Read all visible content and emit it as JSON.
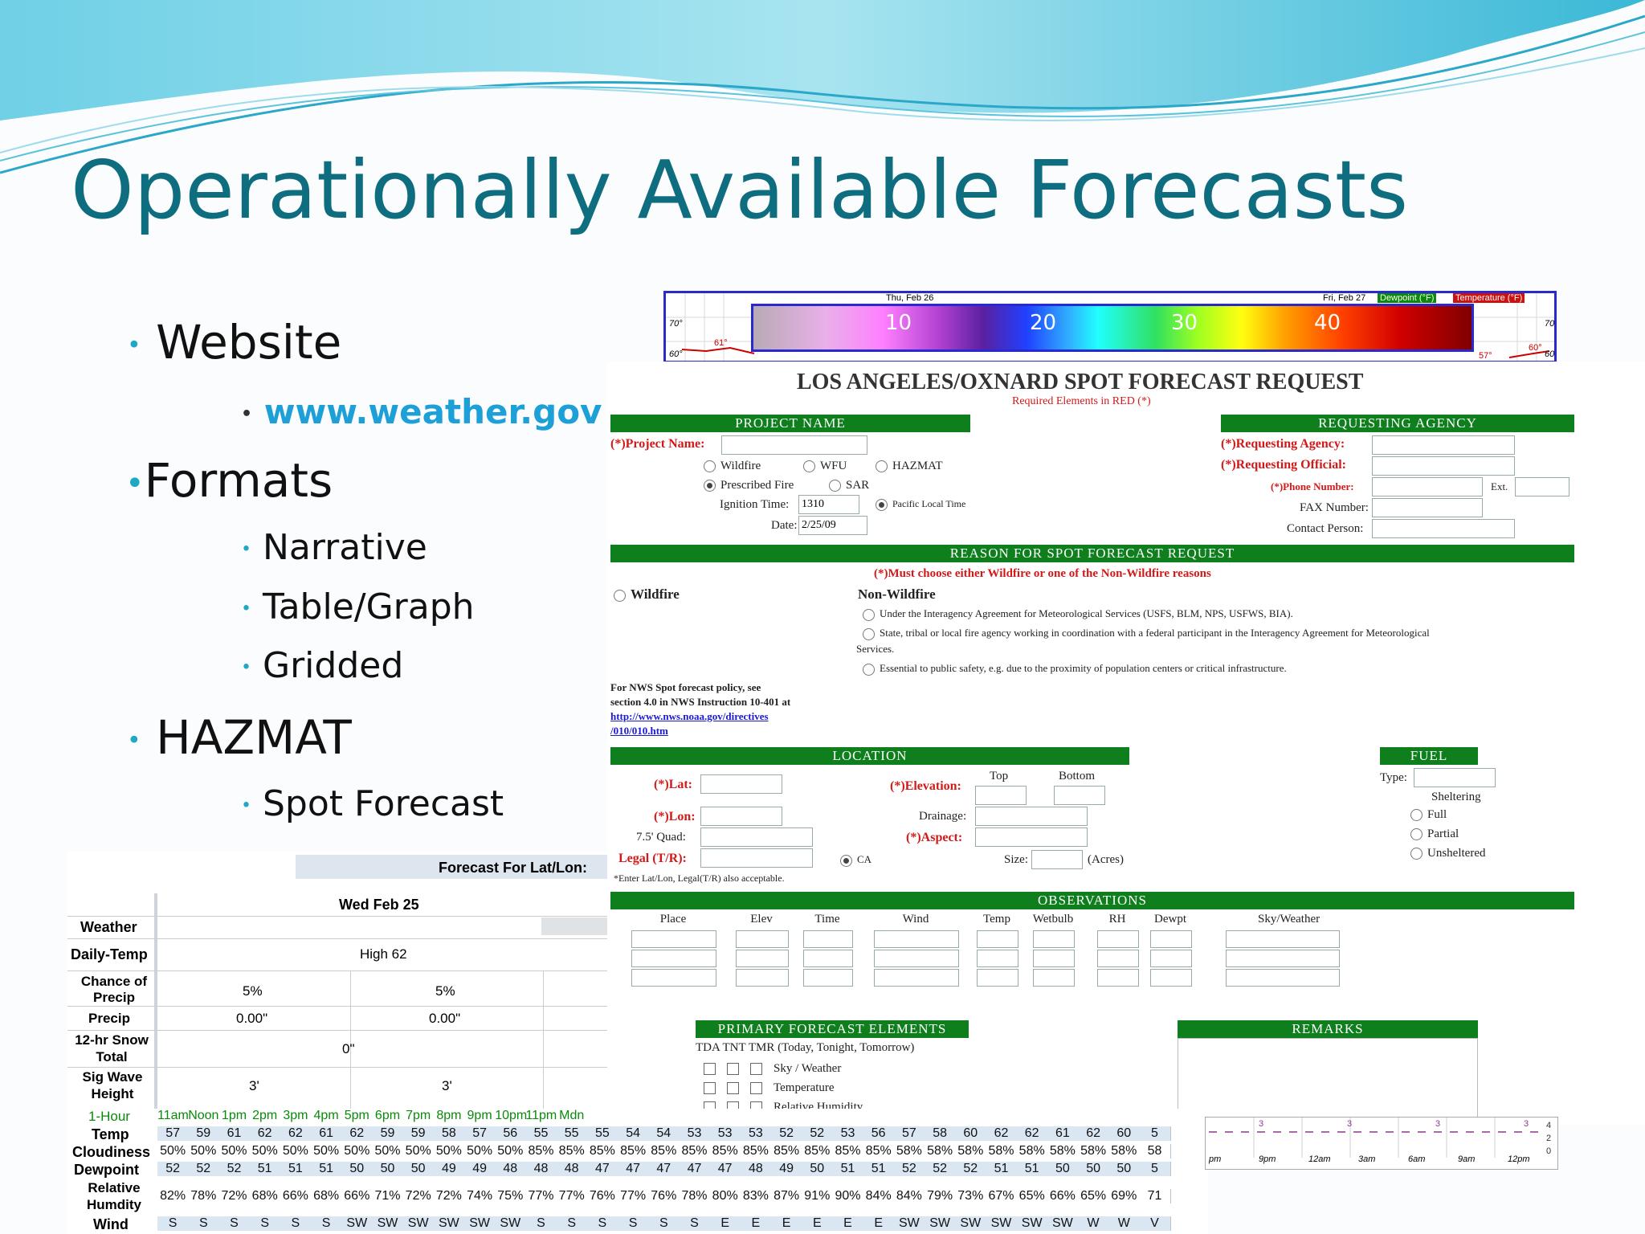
{
  "slide": {
    "title": "Operationally Available Forecasts",
    "bullets": {
      "website": "Website",
      "website_url": "www.weather.gov",
      "formats": "Formats",
      "narrative": "Narrative",
      "table_graph": "Table/Graph",
      "gridded": "Gridded",
      "hazmat": "HAZMAT",
      "spot_forecast": "Spot Forecast"
    },
    "bullet_char": "•"
  },
  "colorbar": {
    "ticks": [
      "10",
      "20",
      "30",
      "40"
    ],
    "header_left": "Thu, Feb 26",
    "header_right": "Fri, Feb 27",
    "legend_dewpoint": "Dewpoint (°F)",
    "legend_temperature": "Temperature (°F)",
    "left_axis_top": "70°",
    "left_axis_bottom": "60°",
    "right_axis_top": "70°",
    "right_axis_bottom": "60°",
    "point_label_left": "61°",
    "point_label_right": "57°",
    "point_label_right2": "60°"
  },
  "spot_form": {
    "title": "LOS ANGELES/OXNARD SPOT FORECAST REQUEST",
    "subtitle": "Required Elements in RED (*)",
    "project_name_bar": "PROJECT NAME",
    "requesting_agency_bar": "REQUESTING AGENCY",
    "project_name_label": "(*)Project Name:",
    "type_options": [
      "Wildfire",
      "WFU",
      "HAZMAT",
      "Prescribed Fire",
      "SAR"
    ],
    "ignition_time_label": "Ignition Time:",
    "ignition_time_value": "1310",
    "pacific_local_time": "Pacific Local Time",
    "date_label": "Date:",
    "date_value": "2/25/09",
    "requesting_agency_label": "(*)Requesting Agency:",
    "requesting_official_label": "(*)Requesting Official:",
    "phone_number_label": "(*)Phone Number:",
    "ext_label": "Ext.",
    "fax_number_label": "FAX Number:",
    "contact_person_label": "Contact Person:",
    "reason_bar": "REASON FOR SPOT FORECAST REQUEST",
    "reason_note": "(*)Must choose either Wildfire or one of the Non-Wildfire reasons",
    "wildfire_option": "Wildfire",
    "non_wildfire_heading": "Non-Wildfire",
    "non_wildfire_1": "Under the Interagency Agreement for Meteorological Services (USFS, BLM, NPS, USFWS, BIA).",
    "non_wildfire_2": "State, tribal or local fire agency working in coordination with a federal participant in the Interagency Agreement for Meteorological",
    "non_wildfire_2b": "Services.",
    "non_wildfire_3": "Essential to public safety, e.g. due to the proximity of population centers or critical infrastructure.",
    "policy_text_1": "For NWS Spot forecast policy, see",
    "policy_text_2": "section 4.0 in NWS Instruction 10-401 at",
    "policy_link_1": "http://www.nws.noaa.gov/directives",
    "policy_link_2": "/010/010.htm",
    "location_bar": "LOCATION",
    "fuel_bar": "FUEL",
    "lat_label": "(*)Lat:",
    "lon_label": "(*)Lon:",
    "quad_label": "7.5' Quad:",
    "legal_label": "Legal (T/R):",
    "ca_label": "CA",
    "enter_note": "*Enter Lat/Lon, Legal(T/R) also acceptable.",
    "elevation_label": "(*)Elevation:",
    "top_label": "Top",
    "bottom_label": "Bottom",
    "drainage_label": "Drainage:",
    "aspect_label": "(*)Aspect:",
    "size_label": "Size:",
    "acres_label": "(Acres)",
    "type_label": "Type:",
    "sheltering_label": "Sheltering",
    "sheltering_options": [
      "Full",
      "Partial",
      "Unsheltered"
    ],
    "observations_bar": "OBSERVATIONS",
    "obs_columns": [
      "Place",
      "Elev",
      "Time",
      "Wind",
      "Temp",
      "Wetbulb",
      "RH",
      "Dewpt",
      "Sky/Weather"
    ],
    "primary_bar": "PRIMARY FORECAST ELEMENTS",
    "remarks_bar": "REMARKS",
    "tda_header": "TDA TNT TMR (Today, Tonight, Tomorrow)",
    "elements": [
      "Sky / Weather",
      "Temperature",
      "Relative Humidity"
    ]
  },
  "point_table": {
    "header_title": "Forecast For Lat/Lon:",
    "day_header": "Wed Feb 25",
    "rows": {
      "weather": "Weather",
      "daily_temp": "Daily-Temp",
      "daily_temp_value": "High 62",
      "chance_precip": "Chance of Precip",
      "chance_values": [
        "5%",
        "5%"
      ],
      "precip": "Precip",
      "precip_values": [
        "0.00\"",
        "0.00\""
      ],
      "snow": "12-hr Snow Total",
      "snow_value": "0\"",
      "sig_wave": "Sig Wave Height",
      "wave_values": [
        "3'",
        "3'"
      ],
      "hour_label": "1-Hour",
      "temp_label": "Temp",
      "cloud_label": "Cloudiness",
      "dew_label": "Dewpoint",
      "rh_label": "Relative Humdity",
      "wind_label": "Wind"
    },
    "hours": [
      "11am",
      "Noon",
      "1pm",
      "2pm",
      "3pm",
      "4pm",
      "5pm",
      "6pm",
      "7pm",
      "8pm",
      "9pm",
      "10pm",
      "11pm",
      "Mdn"
    ],
    "temp": [
      "57",
      "59",
      "61",
      "62",
      "62",
      "61",
      "62",
      "59",
      "59",
      "58",
      "57",
      "56",
      "55",
      "55",
      "55",
      "54",
      "54",
      "53",
      "53",
      "53",
      "52",
      "52",
      "53",
      "56",
      "57",
      "58",
      "60",
      "62",
      "62",
      "61",
      "62",
      "60",
      "5"
    ],
    "cloud": [
      "50%",
      "50%",
      "50%",
      "50%",
      "50%",
      "50%",
      "50%",
      "50%",
      "50%",
      "50%",
      "50%",
      "50%",
      "85%",
      "85%",
      "85%",
      "85%",
      "85%",
      "85%",
      "85%",
      "85%",
      "85%",
      "85%",
      "85%",
      "85%",
      "58%",
      "58%",
      "58%",
      "58%",
      "58%",
      "58%",
      "58%",
      "58%",
      "58"
    ],
    "dew": [
      "52",
      "52",
      "52",
      "51",
      "51",
      "51",
      "50",
      "50",
      "50",
      "49",
      "49",
      "48",
      "48",
      "48",
      "47",
      "47",
      "47",
      "47",
      "47",
      "48",
      "49",
      "50",
      "51",
      "51",
      "52",
      "52",
      "52",
      "51",
      "51",
      "50",
      "50",
      "50",
      "5"
    ],
    "rh": [
      "82%",
      "78%",
      "72%",
      "68%",
      "66%",
      "68%",
      "66%",
      "71%",
      "72%",
      "72%",
      "74%",
      "75%",
      "77%",
      "77%",
      "76%",
      "77%",
      "76%",
      "78%",
      "80%",
      "83%",
      "87%",
      "91%",
      "90%",
      "84%",
      "84%",
      "79%",
      "73%",
      "67%",
      "65%",
      "66%",
      "65%",
      "69%",
      "71"
    ],
    "wind": [
      "S",
      "S",
      "S",
      "S",
      "S",
      "S",
      "SW",
      "SW",
      "SW",
      "SW",
      "SW",
      "SW",
      "S",
      "S",
      "S",
      "S",
      "S",
      "S",
      "E",
      "E",
      "E",
      "E",
      "E",
      "E",
      "SW",
      "SW",
      "SW",
      "SW",
      "SW",
      "SW",
      "W",
      "W",
      "V"
    ],
    "mini_times": [
      "pm",
      "9pm",
      "12am",
      "3am",
      "6am",
      "9am",
      "12pm"
    ],
    "mini_values": [
      "3",
      "3",
      "3",
      "3",
      "4",
      "2",
      "0"
    ]
  },
  "colors": {
    "title": "#0f6d80",
    "bullet_dot": "#1fa8c4",
    "form_green": "#0f7f1e",
    "required_red": "#d11919",
    "link": "#1a1ad0",
    "hour_green": "#0a8a0a"
  }
}
